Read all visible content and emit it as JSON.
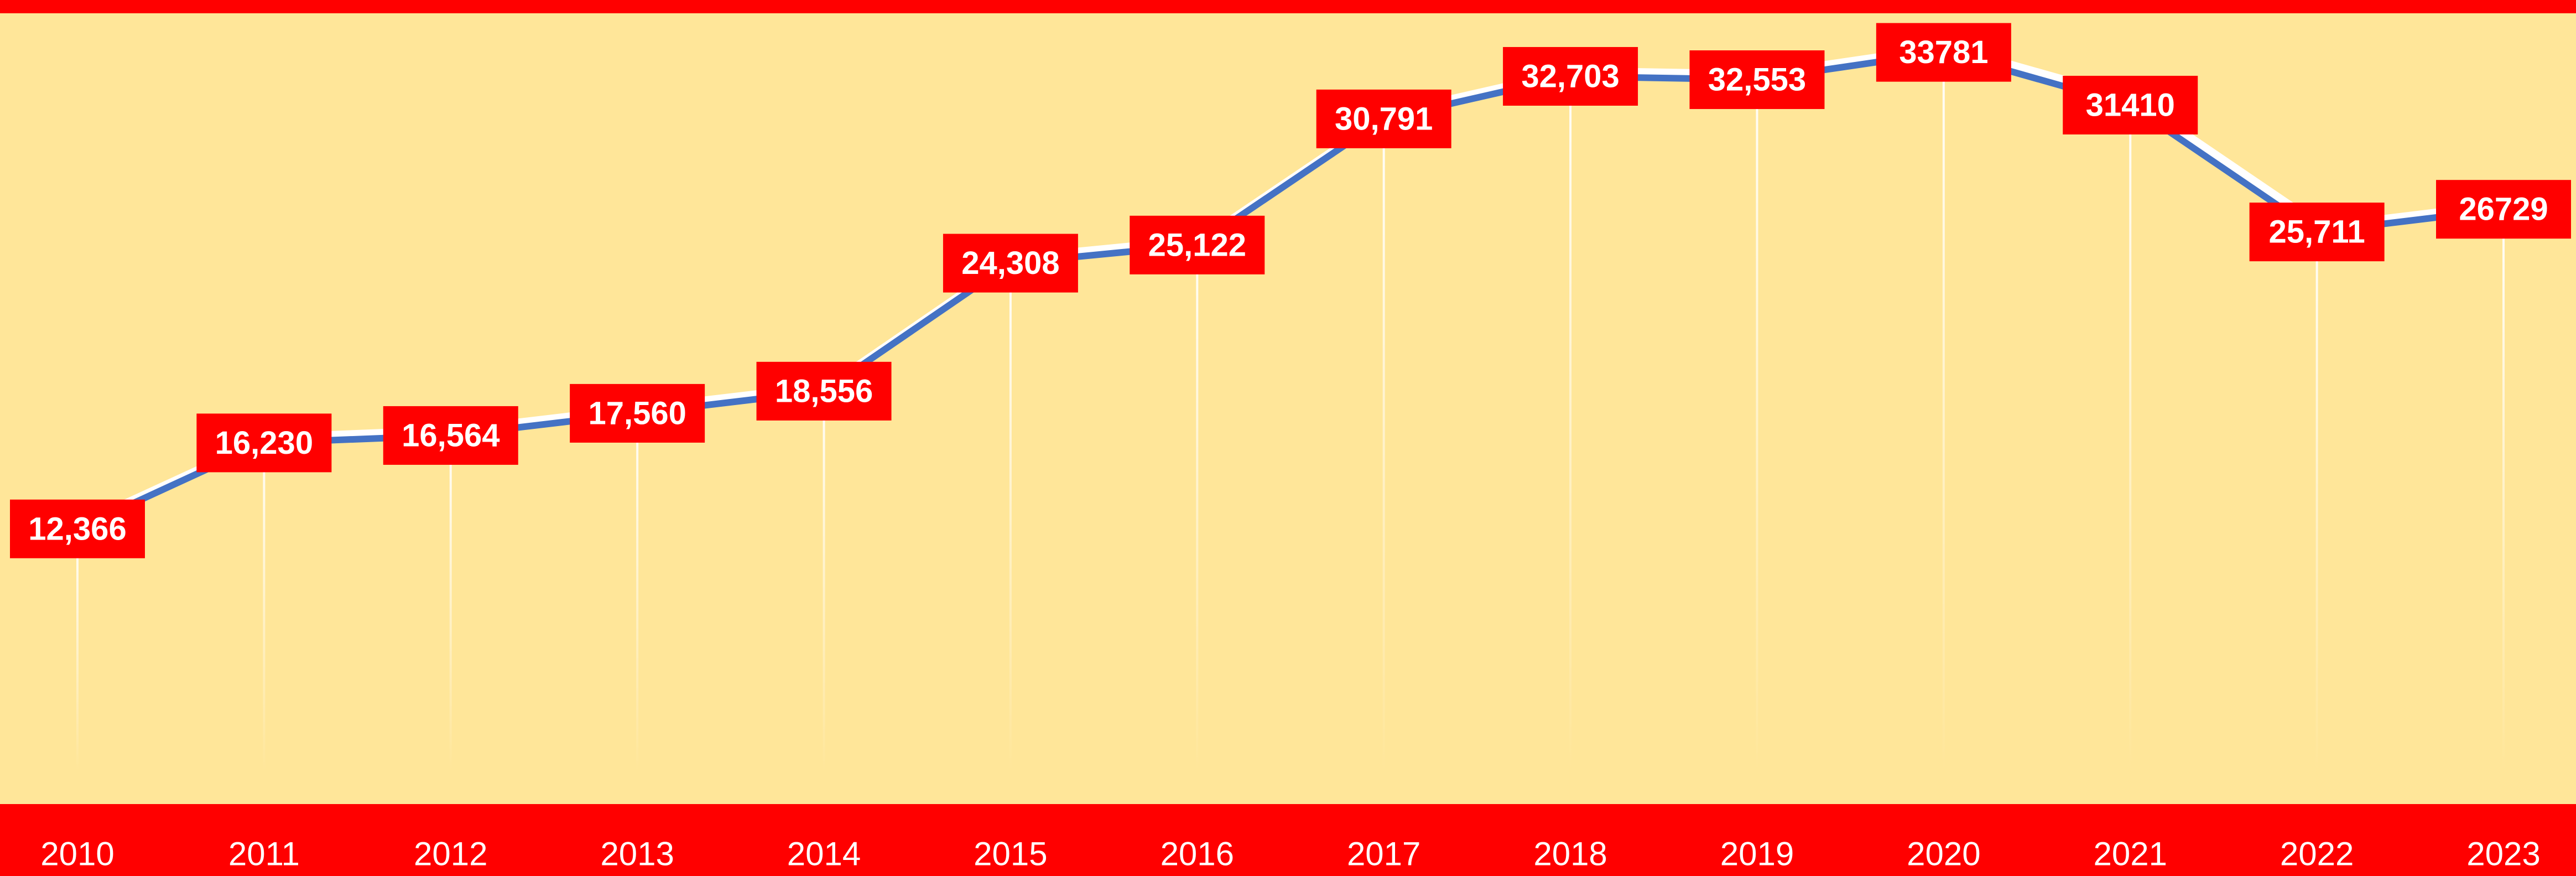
{
  "chart_data": {
    "type": "line",
    "categories": [
      "2010",
      "2011",
      "2012",
      "2013",
      "2014",
      "2015",
      "2016",
      "2017",
      "2018",
      "2019",
      "2020",
      "2021",
      "2022",
      "2023"
    ],
    "values": [
      12366,
      16230,
      16564,
      17560,
      18556,
      24308,
      25122,
      30791,
      32703,
      32553,
      33781,
      31410,
      25711,
      26729
    ],
    "value_labels": [
      "12,366",
      "16,230",
      "16,564",
      "17,560",
      "18,556",
      "24,308",
      "25,122",
      "30,791",
      "32,703",
      "32,553",
      "33781",
      "31410",
      "25,711",
      "26729"
    ],
    "color": "#4472c4"
  }
}
